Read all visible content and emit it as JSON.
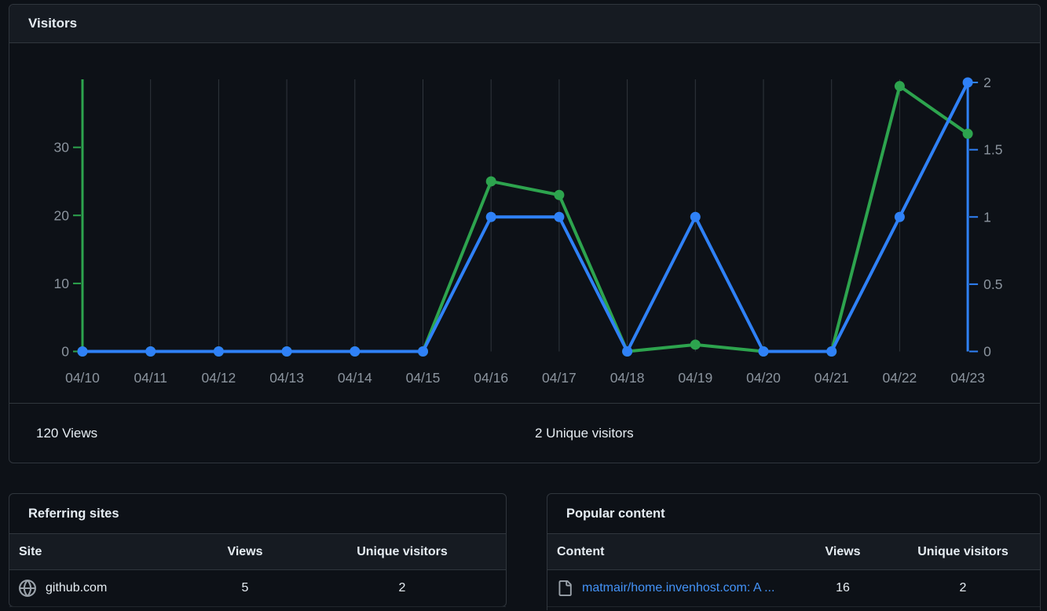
{
  "visitors_card": {
    "title": "Visitors",
    "summary": {
      "views_label": "120 Views",
      "unique_label": "2 Unique visitors"
    },
    "chart_data": {
      "type": "line",
      "x": [
        "04/10",
        "04/11",
        "04/12",
        "04/13",
        "04/14",
        "04/15",
        "04/16",
        "04/17",
        "04/18",
        "04/19",
        "04/20",
        "04/21",
        "04/22",
        "04/23"
      ],
      "series": [
        {
          "name": "Views",
          "axis": "left",
          "color": "#2da44e",
          "values": [
            0,
            0,
            0,
            0,
            0,
            0,
            25,
            23,
            0,
            1,
            0,
            0,
            39,
            32
          ]
        },
        {
          "name": "Unique visitors",
          "axis": "right",
          "color": "#2f81f7",
          "values": [
            0,
            0,
            0,
            0,
            0,
            0,
            1,
            1,
            0,
            1,
            0,
            0,
            1,
            2
          ]
        }
      ],
      "left_axis": {
        "ticks": [
          0,
          10,
          20,
          30
        ],
        "range": [
          0,
          40
        ],
        "color": "#2da44e",
        "label_color": "#8b949e"
      },
      "right_axis": {
        "ticks": [
          0,
          0.5,
          1,
          1.5,
          2
        ],
        "range": [
          0,
          2
        ],
        "color": "#2f81f7",
        "label_color": "#8b949e"
      },
      "grid": "vertical",
      "grid_color": "#30363d",
      "legend": "none"
    }
  },
  "referring_sites": {
    "title": "Referring sites",
    "columns": [
      "Site",
      "Views",
      "Unique visitors"
    ],
    "rows": [
      {
        "icon": "globe-icon",
        "site": "github.com",
        "views": "5",
        "unique": "2"
      }
    ]
  },
  "popular_content": {
    "title": "Popular content",
    "columns": [
      "Content",
      "Views",
      "Unique visitors"
    ],
    "rows": [
      {
        "icon": "file-icon",
        "content": "matmair/home.invenhost.com: A ...",
        "views": "16",
        "unique": "2"
      }
    ]
  },
  "colors": {
    "background": "#0d1117",
    "card_header": "#161b22",
    "border": "#30363d",
    "text": "#e6edf3",
    "muted": "#8b949e",
    "views_green": "#2da44e",
    "unique_blue": "#2f81f7",
    "link_blue": "#4493f8"
  }
}
